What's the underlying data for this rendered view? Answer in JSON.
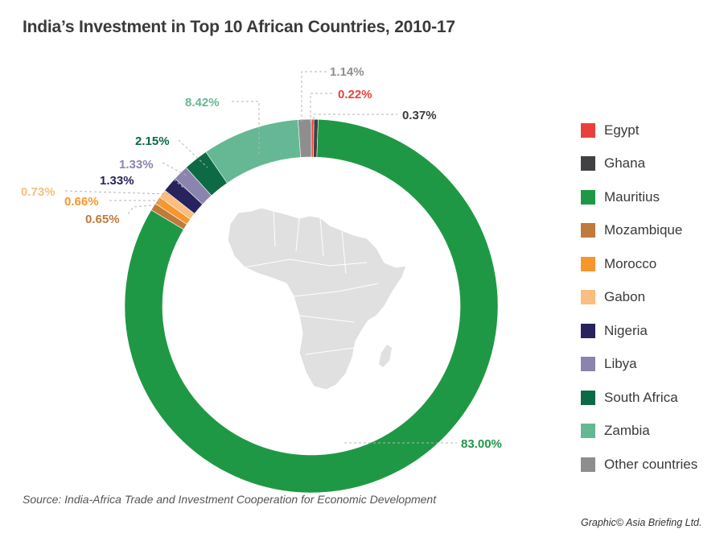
{
  "chart_data": {
    "type": "pie",
    "style": "donut",
    "title": "India’s Investment in Top 10 African Countries, 2010-17",
    "slices": [
      {
        "name": "Egypt",
        "value": 0.22,
        "label": "0.22%",
        "color": "#e8413c"
      },
      {
        "name": "Ghana",
        "value": 0.37,
        "label": "0.37%",
        "color": "#414042"
      },
      {
        "name": "Mauritius",
        "value": 83.0,
        "label": "83.00%",
        "color": "#1f9846"
      },
      {
        "name": "Mozambique",
        "value": 0.65,
        "label": "0.65%",
        "color": "#c07a3c"
      },
      {
        "name": "Morocco",
        "value": 0.66,
        "label": "0.66%",
        "color": "#f6962d"
      },
      {
        "name": "Gabon",
        "value": 0.73,
        "label": "0.73%",
        "color": "#fbbd80"
      },
      {
        "name": "Nigeria",
        "value": 1.33,
        "label": "1.33%",
        "color": "#28235c"
      },
      {
        "name": "Libya",
        "value": 1.33,
        "label": "1.33%",
        "color": "#8b84ae"
      },
      {
        "name": "South Africa",
        "value": 2.15,
        "label": "2.15%",
        "color": "#0c6b45"
      },
      {
        "name": "Zambia",
        "value": 8.42,
        "label": "8.42%",
        "color": "#65b893"
      },
      {
        "name": "Other countries",
        "value": 1.14,
        "label": "1.14%",
        "color": "#8e8e8f"
      }
    ],
    "legend_position": "right"
  },
  "source": "Source: India-Africa Trade and Investment Cooperation for Economic Development",
  "credit": "Graphic© Asia Briefing Ltd."
}
